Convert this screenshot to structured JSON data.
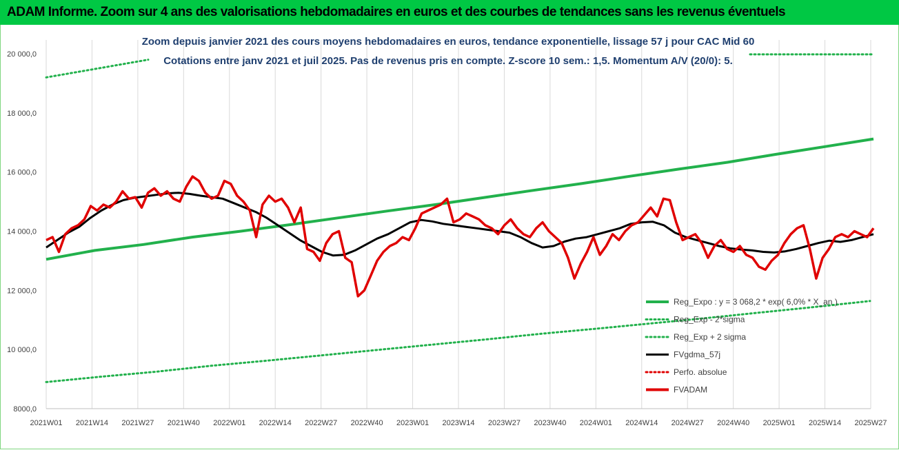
{
  "banner": {
    "title": "ADAM Informe. Zoom sur 4 ans des valorisations hebdomadaires en euros et des courbes de tendances sans les revenus éventuels",
    "color": "#00c844"
  },
  "chart_data": {
    "type": "line",
    "title": "Zoom depuis janvier 2021 des cours moyens hebdomadaires en euros, tendance exponentielle, lissage 57 j pour CAC Mid 60",
    "subtitle": "Cotations entre janv 2021 et juil 2025. Pas de revenus pris en compte. Z-score 10 sem.: 1,5. Momentum A/V (20/0): 5.",
    "xlabel": "",
    "ylabel": "",
    "ylim": [
      8000,
      20000
    ],
    "yticks": [
      "8000,0",
      "10 000,0",
      "12 000,0",
      "14 000,0",
      "16 000,0",
      "18 000,0",
      "20 000,0"
    ],
    "ytick_values": [
      8000,
      10000,
      12000,
      14000,
      16000,
      18000,
      20000
    ],
    "xticks": [
      "2021W01",
      "2021W14",
      "2021W27",
      "2021W40",
      "2022W01",
      "2022W14",
      "2022W27",
      "2022W40",
      "2023W01",
      "2023W14",
      "2023W27",
      "2023W40",
      "2024W01",
      "2024W14",
      "2024W27",
      "2024W40",
      "2025W01",
      "2025W14",
      "2025W27"
    ],
    "grid": "vertical",
    "legend_position": "bottom-right",
    "series": [
      {
        "name": "Reg_Expo : y = 3 068,2 * exp( 6,0% * X_an )",
        "color": "#22b14c",
        "style": "solid",
        "values": [
          13050,
          13350,
          13550,
          13800,
          14000,
          14220,
          14450,
          14680,
          14900,
          15140,
          15380,
          15610,
          15860,
          16100,
          16330,
          16600,
          16860,
          17120
        ]
      },
      {
        "name": "Reg_Exp - 2*sigma",
        "color": "#22b14c",
        "style": "dotted",
        "values": [
          8900,
          9080,
          9250,
          9450,
          9620,
          9800,
          9980,
          10160,
          10340,
          10530,
          10700,
          10880,
          11060,
          11250,
          11440,
          11640
        ]
      },
      {
        "name": "Reg_Exp + 2 sigma",
        "color": "#22b14c",
        "style": "dotted",
        "values": [
          19200,
          19500,
          19800
        ]
      },
      {
        "name": "FVgdma_57j",
        "color": "#000000",
        "style": "solid",
        "values": [
          13450,
          13700,
          13950,
          14150,
          14450,
          14700,
          14900,
          15050,
          15130,
          15180,
          15230,
          15280,
          15300,
          15260,
          15200,
          15150,
          15100,
          14950,
          14800,
          14650,
          14450,
          14200,
          13950,
          13700,
          13500,
          13300,
          13180,
          13200,
          13350,
          13550,
          13750,
          13900,
          14100,
          14300,
          14380,
          14330,
          14250,
          14200,
          14150,
          14100,
          14050,
          14000,
          13950,
          13800,
          13600,
          13450,
          13500,
          13650,
          13750,
          13800,
          13900,
          14000,
          14100,
          14250,
          14300,
          14320,
          14200,
          13950,
          13800,
          13700,
          13600,
          13500,
          13420,
          13380,
          13350,
          13300,
          13280,
          13320,
          13400,
          13500,
          13600,
          13680,
          13640,
          13700,
          13800,
          13900
        ]
      },
      {
        "name": "Perfo. absolue",
        "color": "#e00000",
        "style": "dotted",
        "values": []
      },
      {
        "name": "FVADAM",
        "color": "#e00000",
        "style": "solid",
        "values": [
          13700,
          13800,
          13300,
          13900,
          14100,
          14200,
          14400,
          14850,
          14700,
          14900,
          14800,
          15000,
          15350,
          15100,
          15150,
          14800,
          15300,
          15450,
          15200,
          15350,
          15100,
          15000,
          15500,
          15850,
          15700,
          15300,
          15100,
          15200,
          15700,
          15600,
          15200,
          15000,
          14700,
          13800,
          14900,
          15200,
          15000,
          15100,
          14800,
          14300,
          14800,
          13400,
          13300,
          13000,
          13600,
          13900,
          14000,
          13100,
          12950,
          11800,
          12000,
          12500,
          13000,
          13300,
          13500,
          13600,
          13800,
          13700,
          14100,
          14600,
          14700,
          14800,
          14900,
          15100,
          14300,
          14400,
          14600,
          14500,
          14400,
          14200,
          14100,
          13900,
          14200,
          14400,
          14100,
          13900,
          13800,
          14100,
          14300,
          14000,
          13800,
          13600,
          13100,
          12400,
          12900,
          13300,
          13800,
          13200,
          13500,
          13900,
          13700,
          14000,
          14200,
          14300,
          14550,
          14800,
          14500,
          15100,
          15050,
          14300,
          13700,
          13800,
          13900,
          13600,
          13100,
          13500,
          13700,
          13400,
          13300,
          13500,
          13200,
          13100,
          12800,
          12700,
          13000,
          13200,
          13600,
          13900,
          14100,
          14200,
          13400,
          12400,
          13100,
          13400,
          13800,
          13900,
          13800,
          14000,
          13900,
          13800,
          14100
        ]
      }
    ]
  }
}
